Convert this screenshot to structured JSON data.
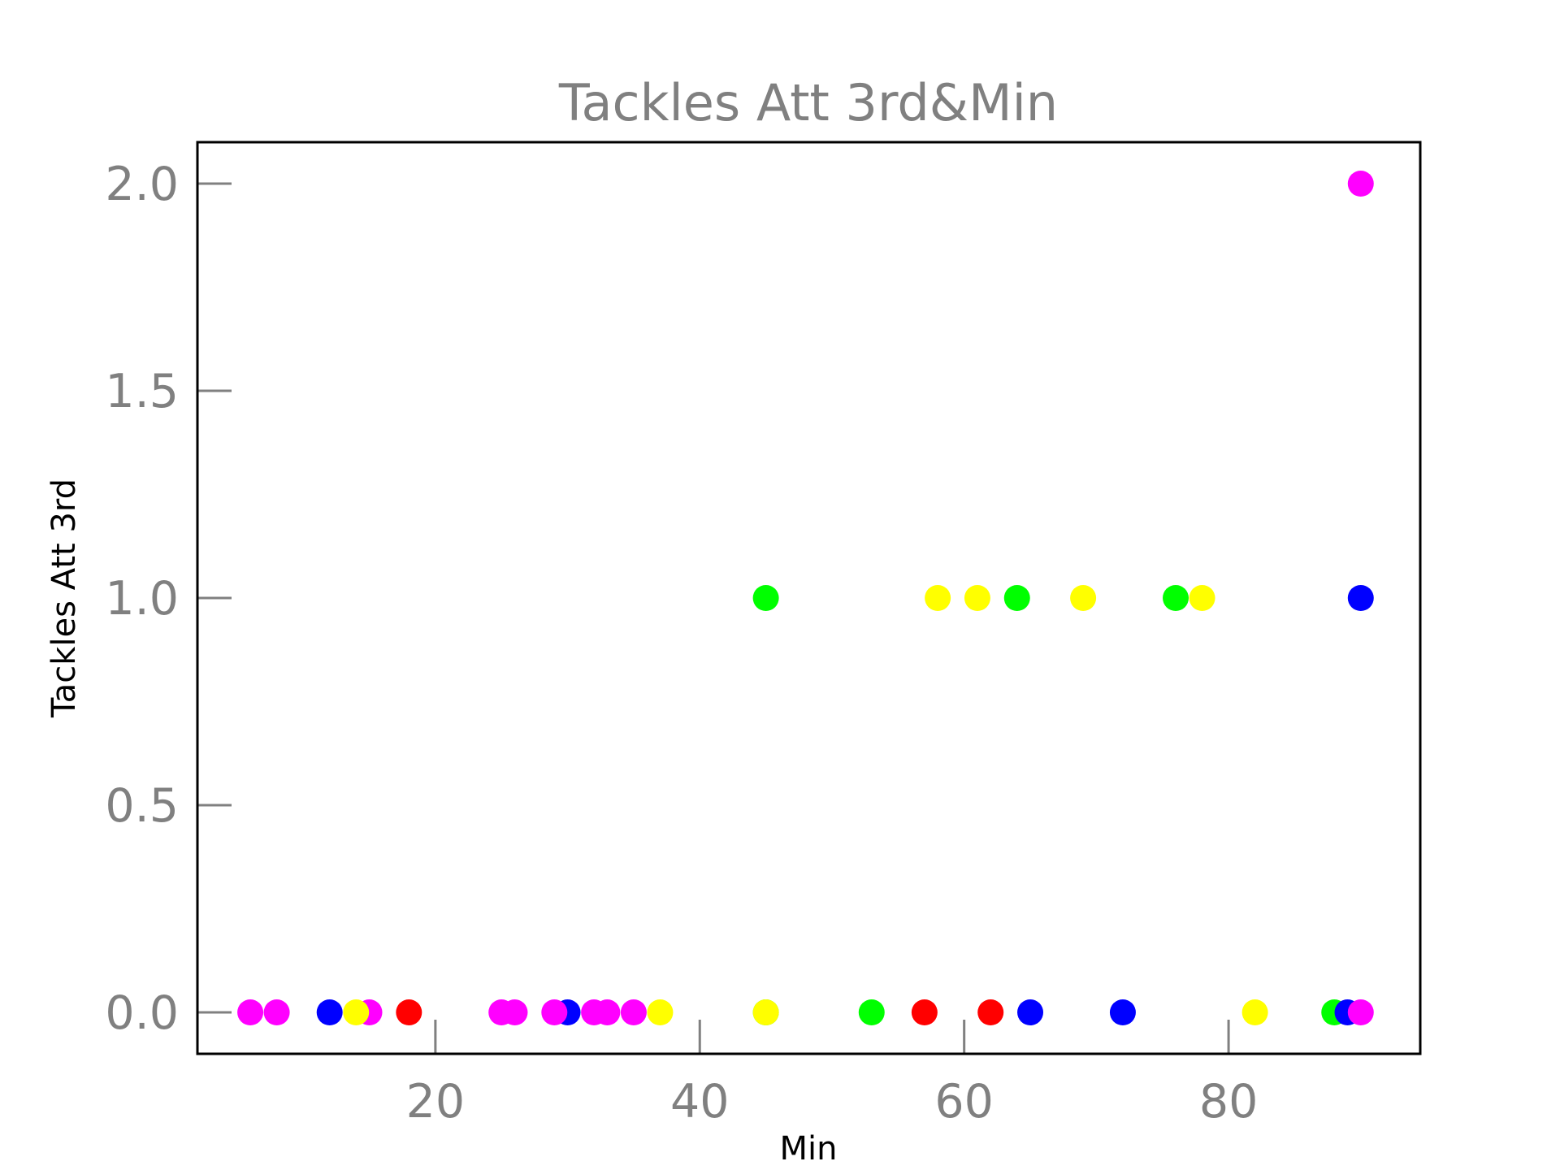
{
  "chart_data": {
    "type": "scatter",
    "title": "Tackles Att 3rd&Min",
    "xlabel": "Min",
    "ylabel": "Tackles Att 3rd",
    "xlim": [
      2,
      94.5
    ],
    "ylim": [
      -0.1,
      2.1
    ],
    "xticks": [
      20,
      40,
      60,
      80
    ],
    "yticks": [
      0.0,
      0.5,
      1.0,
      1.5,
      2.0
    ],
    "xtick_labels": [
      "20",
      "40",
      "60",
      "80"
    ],
    "ytick_labels": [
      "0.0",
      "0.5",
      "1.0",
      "1.5",
      "2.0"
    ],
    "grid": false,
    "colors": {
      "magenta": "#ff00ff",
      "blue": "#0000ff",
      "yellow": "#ffff00",
      "red": "#ff0000",
      "green": "#00ff00"
    },
    "points": [
      {
        "x": 6,
        "y": 0,
        "color": "magenta"
      },
      {
        "x": 8,
        "y": 0,
        "color": "magenta"
      },
      {
        "x": 12,
        "y": 0,
        "color": "blue"
      },
      {
        "x": 15,
        "y": 0,
        "color": "magenta"
      },
      {
        "x": 14,
        "y": 0,
        "color": "yellow"
      },
      {
        "x": 18,
        "y": 0,
        "color": "red"
      },
      {
        "x": 25,
        "y": 0,
        "color": "magenta"
      },
      {
        "x": 26,
        "y": 0,
        "color": "magenta"
      },
      {
        "x": 30,
        "y": 0,
        "color": "blue"
      },
      {
        "x": 29,
        "y": 0,
        "color": "magenta"
      },
      {
        "x": 32,
        "y": 0,
        "color": "magenta"
      },
      {
        "x": 33,
        "y": 0,
        "color": "magenta"
      },
      {
        "x": 35,
        "y": 0,
        "color": "magenta"
      },
      {
        "x": 37,
        "y": 0,
        "color": "yellow"
      },
      {
        "x": 45,
        "y": 0,
        "color": "green"
      },
      {
        "x": 45,
        "y": 0,
        "color": "yellow"
      },
      {
        "x": 53,
        "y": 0,
        "color": "green"
      },
      {
        "x": 57,
        "y": 0,
        "color": "red"
      },
      {
        "x": 62,
        "y": 0,
        "color": "red"
      },
      {
        "x": 65,
        "y": 0,
        "color": "blue"
      },
      {
        "x": 72,
        "y": 0,
        "color": "blue"
      },
      {
        "x": 82,
        "y": 0,
        "color": "yellow"
      },
      {
        "x": 88,
        "y": 0,
        "color": "green"
      },
      {
        "x": 89,
        "y": 0,
        "color": "blue"
      },
      {
        "x": 90,
        "y": 0,
        "color": "magenta"
      },
      {
        "x": 45,
        "y": 1,
        "color": "green"
      },
      {
        "x": 58,
        "y": 1,
        "color": "yellow"
      },
      {
        "x": 61,
        "y": 1,
        "color": "yellow"
      },
      {
        "x": 64,
        "y": 1,
        "color": "green"
      },
      {
        "x": 69,
        "y": 1,
        "color": "yellow"
      },
      {
        "x": 76,
        "y": 1,
        "color": "green"
      },
      {
        "x": 78,
        "y": 1,
        "color": "yellow"
      },
      {
        "x": 90,
        "y": 1,
        "color": "blue"
      },
      {
        "x": 90,
        "y": 2,
        "color": "magenta"
      }
    ]
  }
}
